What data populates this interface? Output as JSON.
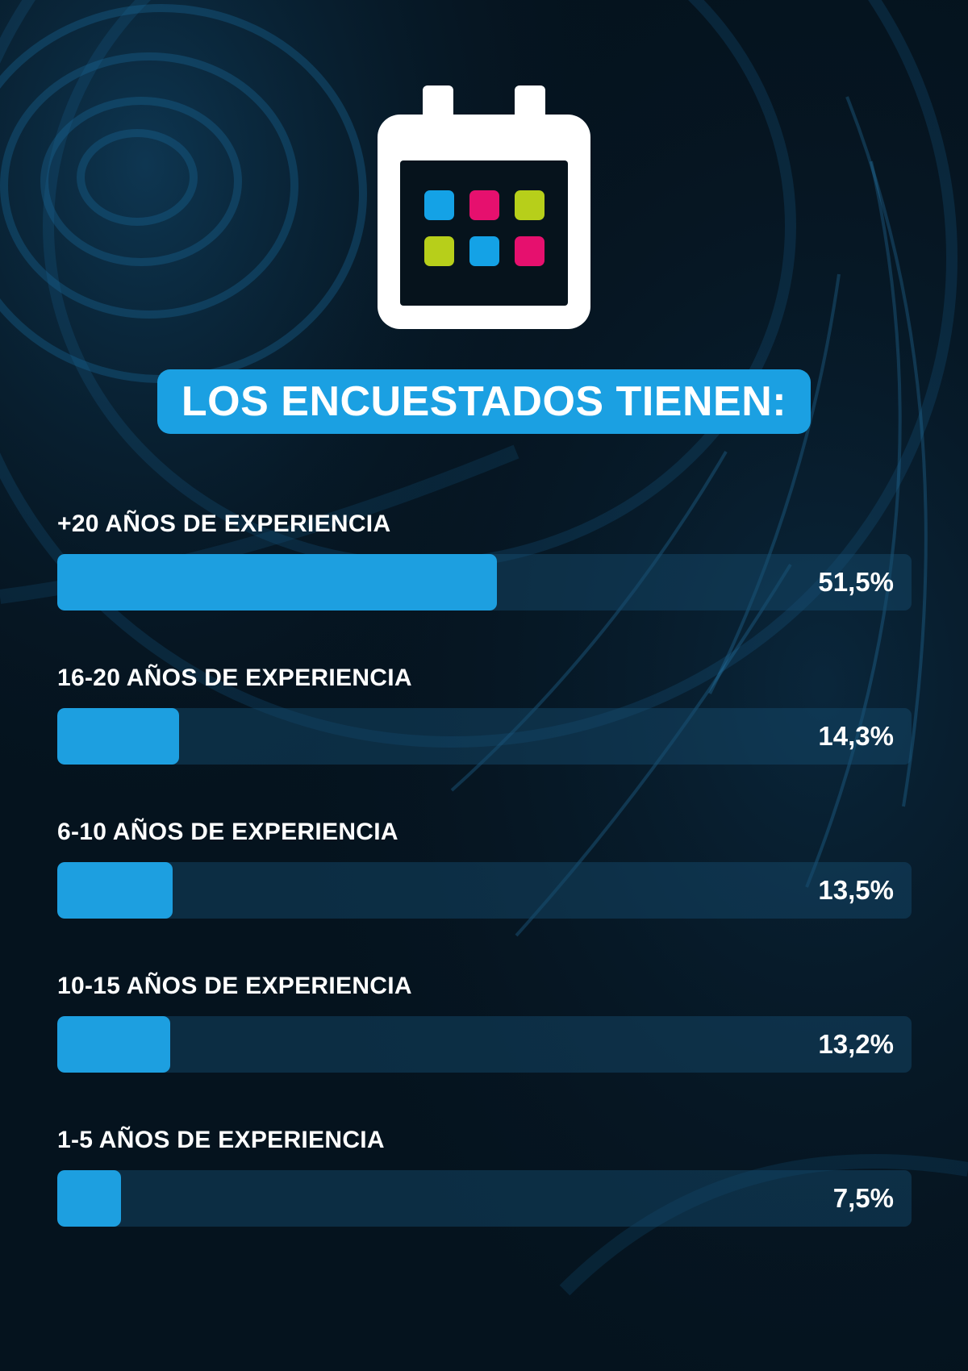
{
  "title": "LOS ENCUESTADOS TIENEN:",
  "colors": {
    "background": "#05131e",
    "accent_blue": "#1ba0e2",
    "bar_fill": "#1d9fe0",
    "bar_track": "#0e3450",
    "icon_magenta": "#e6106e",
    "icon_lime": "#b7cf1a",
    "icon_blue": "#14a2e6"
  },
  "icon": {
    "name": "calendar-icon",
    "cells": [
      "blue",
      "magenta",
      "lime",
      "lime",
      "blue",
      "magenta"
    ]
  },
  "chart_data": {
    "type": "bar",
    "orientation": "horizontal",
    "categories": [
      "+20 AÑOS DE EXPERIENCIA",
      "16-20 AÑOS DE EXPERIENCIA",
      "6-10 AÑOS DE EXPERIENCIA",
      "10-15 AÑOS DE EXPERIENCIA",
      "1-5 AÑOS DE EXPERIENCIA"
    ],
    "values": [
      51.5,
      14.3,
      13.5,
      13.2,
      7.5
    ],
    "value_labels": [
      "51,5%",
      "14,3%",
      "13,5%",
      "13,2%",
      "7,5%"
    ],
    "title": "LOS ENCUESTADOS TIENEN:",
    "xlim": [
      0,
      100
    ],
    "grid": false
  }
}
